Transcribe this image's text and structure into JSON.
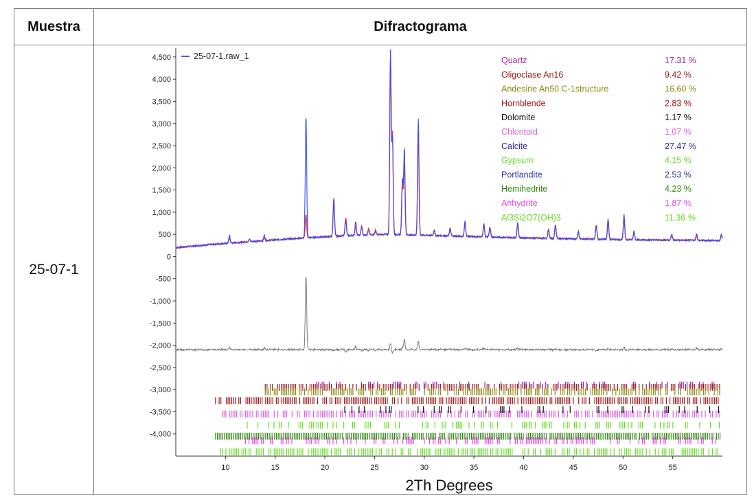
{
  "table": {
    "header_sample": "Muestra",
    "header_diffractogram": "Difractograma",
    "sample_id": "25-07-1"
  },
  "chart_data": {
    "type": "line",
    "xlabel": "2Th Degrees",
    "ylabel": "",
    "xlim": [
      5,
      60
    ],
    "ylim": [
      -4500,
      4700
    ],
    "x_ticks": [
      10,
      15,
      20,
      25,
      30,
      35,
      40,
      45,
      50,
      55
    ],
    "y_ticks": [
      4500,
      4000,
      3500,
      3000,
      2500,
      2000,
      1500,
      1000,
      500,
      0,
      -500,
      -1000,
      -1500,
      -2000,
      -2500,
      -3000,
      -3500,
      -4000
    ],
    "y_tick_labels": [
      "4,500",
      "4,000",
      "3,500",
      "3,000",
      "2,500",
      "2,000",
      "1,500",
      "1,000",
      "500",
      "0",
      "-500",
      "-1,000",
      "-1,500",
      "-2,000",
      "-2,500",
      "-3,000",
      "-3,500",
      "-4,000"
    ],
    "legend": {
      "position": "top-left",
      "label": "25-07-1.raw_1",
      "color": "#4a5cf0"
    },
    "series_colors": {
      "observed": "#3b4ef5",
      "calculated": "#f03c3c",
      "difference": "#7a7a7a"
    },
    "baseline": [
      [
        5,
        200
      ],
      [
        8,
        260
      ],
      [
        12,
        330
      ],
      [
        18,
        420
      ],
      [
        22,
        470
      ],
      [
        26,
        500
      ],
      [
        30,
        480
      ],
      [
        40,
        420
      ],
      [
        50,
        380
      ],
      [
        60,
        360
      ]
    ],
    "peaks": [
      {
        "x": 10.4,
        "obs": 480,
        "calc": 420
      },
      {
        "x": 12.4,
        "obs": 400,
        "calc": 380
      },
      {
        "x": 13.9,
        "obs": 480,
        "calc": 430
      },
      {
        "x": 18.1,
        "obs": 3200,
        "calc": 950
      },
      {
        "x": 20.9,
        "obs": 1300,
        "calc": 1320
      },
      {
        "x": 22.1,
        "obs": 820,
        "calc": 880
      },
      {
        "x": 23.1,
        "obs": 780,
        "calc": 700
      },
      {
        "x": 23.7,
        "obs": 650,
        "calc": 690
      },
      {
        "x": 24.4,
        "obs": 600,
        "calc": 620
      },
      {
        "x": 25.1,
        "obs": 560,
        "calc": 600
      },
      {
        "x": 26.6,
        "obs": 4650,
        "calc": 4450
      },
      {
        "x": 26.8,
        "obs": 2700,
        "calc": 2800
      },
      {
        "x": 27.8,
        "obs": 1750,
        "calc": 1700
      },
      {
        "x": 28.0,
        "obs": 2450,
        "calc": 2150
      },
      {
        "x": 29.4,
        "obs": 3100,
        "calc": 2850
      },
      {
        "x": 31.0,
        "obs": 600,
        "calc": 580
      },
      {
        "x": 32.6,
        "obs": 640,
        "calc": 620
      },
      {
        "x": 34.1,
        "obs": 800,
        "calc": 760
      },
      {
        "x": 36.0,
        "obs": 760,
        "calc": 700
      },
      {
        "x": 36.6,
        "obs": 650,
        "calc": 640
      },
      {
        "x": 39.4,
        "obs": 780,
        "calc": 720
      },
      {
        "x": 42.5,
        "obs": 620,
        "calc": 600
      },
      {
        "x": 43.2,
        "obs": 720,
        "calc": 700
      },
      {
        "x": 45.5,
        "obs": 560,
        "calc": 560
      },
      {
        "x": 47.3,
        "obs": 690,
        "calc": 720
      },
      {
        "x": 48.5,
        "obs": 840,
        "calc": 820
      },
      {
        "x": 50.1,
        "obs": 950,
        "calc": 880
      },
      {
        "x": 51.1,
        "obs": 560,
        "calc": 560
      },
      {
        "x": 54.9,
        "obs": 500,
        "calc": 480
      },
      {
        "x": 57.4,
        "obs": 520,
        "calc": 480
      },
      {
        "x": 59.9,
        "obs": 500,
        "calc": 470
      }
    ],
    "difference_offset": -2100,
    "phases": [
      {
        "name": "Quartz",
        "percent": "17.31 %",
        "color": "#a020a0"
      },
      {
        "name": "Oligoclase An16",
        "percent": "9.42 %",
        "color": "#9b2020"
      },
      {
        "name": "Andesine An50 C-1structure",
        "percent": "16.60 %",
        "color": "#8c8c10"
      },
      {
        "name": "Hornblende",
        "percent": "2.83 %",
        "color": "#a01818"
      },
      {
        "name": "Dolomite",
        "percent": "1.17 %",
        "color": "#111111"
      },
      {
        "name": "Chloritoid",
        "percent": "1.07 %",
        "color": "#e060e0"
      },
      {
        "name": "Calcite",
        "percent": "27.47 %",
        "color": "#2828b0"
      },
      {
        "name": "Gypsum",
        "percent": "4.15 %",
        "color": "#66dd22"
      },
      {
        "name": "Portlandite",
        "percent": "2.53 %",
        "color": "#2f3aa0"
      },
      {
        "name": "Hemihedrite",
        "percent": "4.23 %",
        "color": "#2e8a10"
      },
      {
        "name": "Anhydrite",
        "percent": "1.87 %",
        "color": "#ee44ee"
      },
      {
        "name": "Al3Si2O7(OH)3",
        "percent": "11.36 %",
        "color": "#66dd22"
      }
    ],
    "tick_rows": [
      {
        "level": -2900,
        "color": "#a020a0",
        "density": 0.25,
        "start": 19
      },
      {
        "level": -2950,
        "color": "#9b2020",
        "density": 0.7,
        "start": 14
      },
      {
        "level": -3050,
        "color": "#8c8c10",
        "density": 0.7,
        "start": 14
      },
      {
        "level": -3250,
        "color": "#a01818",
        "density": 0.8,
        "start": 9
      },
      {
        "level": -3450,
        "color": "#111111",
        "density": 0.2,
        "start": 22
      },
      {
        "level": -3550,
        "color": "#e060e0",
        "density": 0.65,
        "start": 9.5
      },
      {
        "level": -3800,
        "color": "#66dd22",
        "density": 0.35,
        "start": 12
      },
      {
        "level": -4050,
        "color": "#2e8a10",
        "density": 0.95,
        "start": 9
      },
      {
        "level": -4150,
        "color": "#ee44ee",
        "density": 0.4,
        "start": 12
      },
      {
        "level": -4400,
        "color": "#66dd22",
        "density": 0.65,
        "start": 9.5
      }
    ]
  }
}
